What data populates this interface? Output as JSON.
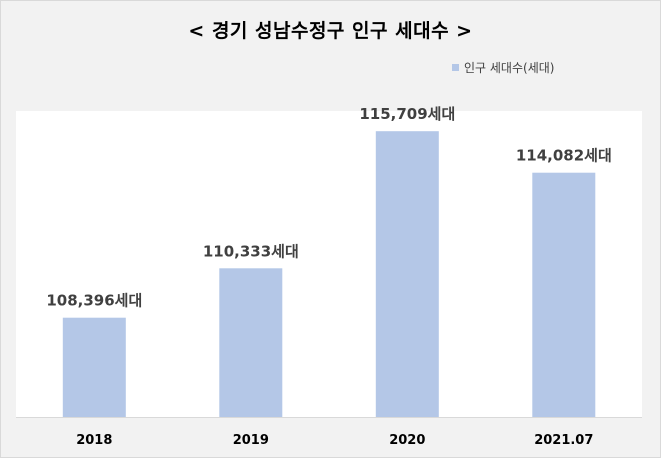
{
  "chart_data": {
    "type": "bar",
    "title": "< 경기 성남수정구 인구 세대수 >",
    "categories": [
      "2018",
      "2019",
      "2020",
      "2021.07"
    ],
    "series": [
      {
        "name": "인구 세대수(세대)",
        "values": [
          108396,
          110333,
          115709,
          114082
        ],
        "labels": [
          "108,396세대",
          "110,333세대",
          "115,709세대",
          "114,082세대"
        ]
      }
    ],
    "ylim": [
      104500,
      116500
    ],
    "grid": false,
    "legend_position": "top-right",
    "colors": {
      "bar": "#b4c7e7",
      "plot_background": "#ffffff",
      "outer_background": "#f2f2f2"
    }
  }
}
